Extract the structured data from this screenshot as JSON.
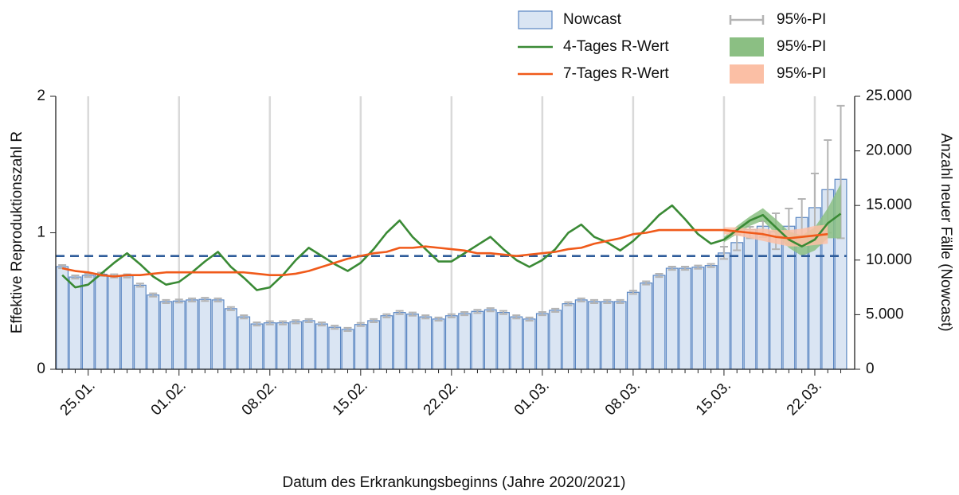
{
  "chart_data": {
    "type": "bar-line",
    "xlabel": "Datum des Erkrankungsbeginns (Jahre 2020/2021)",
    "ylabel": "Effektive Reproduktionszahl R",
    "y2label": "Anzahl neuer Fälle (Nowcast)",
    "categories": [
      null,
      null,
      "25.01.",
      null,
      null,
      null,
      null,
      null,
      null,
      "01.02.",
      null,
      null,
      null,
      null,
      null,
      null,
      "08.02.",
      null,
      null,
      null,
      null,
      null,
      null,
      "15.02.",
      null,
      null,
      null,
      null,
      null,
      null,
      "22.02.",
      null,
      null,
      null,
      null,
      null,
      null,
      "01.03.",
      null,
      null,
      null,
      null,
      null,
      null,
      "08.03.",
      null,
      null,
      null,
      null,
      null,
      null,
      "15.03.",
      null,
      null,
      null,
      null,
      null,
      null,
      "22.03.",
      null,
      null
    ],
    "ylim": [
      0,
      2
    ],
    "yticks": [
      0,
      1,
      2
    ],
    "y2lim": [
      0,
      25000
    ],
    "y2ticks": [
      0,
      {
        "value": 5000,
        "label": "5.000"
      },
      {
        "value": 10000,
        "label": "10.000"
      },
      {
        "value": 15000,
        "label": "15.000"
      },
      {
        "value": 20000,
        "label": "20.000"
      },
      {
        "value": 25000,
        "label": "25.000"
      }
    ],
    "grid": "x",
    "hline": {
      "value": 0.83,
      "color": "#2e5c9a"
    },
    "series": [
      {
        "name": "Nowcast",
        "type": "bar",
        "axis": "y2",
        "color": "#dae5f3",
        "edge": "#5a86c2",
        "values": [
          9400,
          8450,
          8600,
          8700,
          8550,
          8550,
          7700,
          6800,
          6200,
          6250,
          6350,
          6400,
          6350,
          5550,
          4800,
          4150,
          4250,
          4250,
          4350,
          4450,
          4150,
          3850,
          3650,
          4100,
          4450,
          4900,
          5200,
          5050,
          4800,
          4600,
          4900,
          5100,
          5300,
          5450,
          5200,
          4800,
          4600,
          5100,
          5400,
          6000,
          6350,
          6200,
          6200,
          6200,
          7050,
          7900,
          8600,
          9250,
          9250,
          9350,
          9500,
          10650,
          11600,
          12800,
          13100,
          12600,
          13100,
          13900,
          14800,
          16450,
          17400
        ],
        "pi_name": "95%-PI",
        "pi_color": "#b4b4b4",
        "pi_lower": [
          9250,
          8300,
          8450,
          8550,
          8400,
          8400,
          7550,
          6650,
          6050,
          6100,
          6200,
          6250,
          6200,
          5400,
          4650,
          4000,
          4100,
          4100,
          4200,
          4300,
          4000,
          3700,
          3500,
          3950,
          4300,
          4750,
          5050,
          4900,
          4650,
          4450,
          4750,
          4950,
          5150,
          5300,
          5050,
          4650,
          4450,
          4950,
          5250,
          5850,
          6200,
          6050,
          6050,
          6050,
          6900,
          7750,
          8450,
          9100,
          9100,
          9200,
          9350,
          10100,
          10900,
          12000,
          12100,
          11000,
          11500,
          12200,
          12000,
          12500,
          12000
        ],
        "pi_upper": [
          9550,
          8600,
          8750,
          8850,
          8700,
          8700,
          7850,
          6950,
          6350,
          6400,
          6500,
          6550,
          6500,
          5700,
          4950,
          4300,
          4400,
          4400,
          4500,
          4600,
          4300,
          4000,
          3800,
          4250,
          4600,
          5050,
          5350,
          5200,
          4950,
          4750,
          5050,
          5250,
          5450,
          5600,
          5350,
          4950,
          4750,
          5250,
          5550,
          6150,
          6500,
          6350,
          6350,
          6350,
          7200,
          8050,
          8750,
          9400,
          9400,
          9500,
          9650,
          11225,
          12320,
          13050,
          13560,
          14290,
          14720,
          15600,
          17930,
          20990,
          24130
        ]
      },
      {
        "name": "4-Tages R-Wert",
        "type": "line",
        "axis": "y",
        "color": "#3a8a35",
        "values": [
          0.69,
          0.6,
          0.62,
          0.7,
          0.78,
          0.85,
          0.77,
          0.68,
          0.62,
          0.64,
          0.71,
          0.79,
          0.86,
          0.75,
          0.67,
          0.58,
          0.6,
          0.69,
          0.8,
          0.89,
          0.83,
          0.77,
          0.72,
          0.78,
          0.88,
          1.0,
          1.09,
          0.97,
          0.88,
          0.79,
          0.79,
          0.85,
          0.91,
          0.97,
          0.88,
          0.8,
          0.75,
          0.8,
          0.88,
          1.0,
          1.06,
          0.97,
          0.93,
          0.87,
          0.94,
          1.03,
          1.13,
          1.2,
          1.1,
          0.99,
          0.92,
          0.95,
          1.02,
          1.09,
          1.13,
          1.04,
          0.95,
          0.9,
          0.95,
          1.07,
          1.14
        ],
        "band_name": "95%-PI",
        "band_color": "#8bbf83",
        "band_lower": [
          null,
          null,
          null,
          null,
          null,
          null,
          null,
          null,
          null,
          null,
          null,
          null,
          null,
          null,
          null,
          null,
          null,
          null,
          null,
          null,
          null,
          null,
          null,
          null,
          null,
          null,
          null,
          null,
          null,
          null,
          null,
          null,
          null,
          null,
          null,
          null,
          null,
          null,
          null,
          null,
          null,
          null,
          null,
          null,
          null,
          null,
          null,
          null,
          null,
          null,
          null,
          0.93,
          0.99,
          1.05,
          1.09,
          0.99,
          0.89,
          0.83,
          0.87,
          0.96,
          0.96
        ],
        "band_upper": [
          null,
          null,
          null,
          null,
          null,
          null,
          null,
          null,
          null,
          null,
          null,
          null,
          null,
          null,
          null,
          null,
          null,
          null,
          null,
          null,
          null,
          null,
          null,
          null,
          null,
          null,
          null,
          null,
          null,
          null,
          null,
          null,
          null,
          null,
          null,
          null,
          null,
          null,
          null,
          null,
          null,
          null,
          null,
          null,
          null,
          null,
          null,
          null,
          null,
          null,
          null,
          0.97,
          1.05,
          1.12,
          1.18,
          1.1,
          1.01,
          0.98,
          1.04,
          1.18,
          1.36
        ]
      },
      {
        "name": "7-Tages R-Wert",
        "type": "line",
        "axis": "y",
        "color": "#f05a1a",
        "values": [
          0.74,
          0.72,
          0.71,
          0.69,
          0.68,
          0.69,
          0.69,
          0.7,
          0.71,
          0.71,
          0.71,
          0.71,
          0.71,
          0.71,
          0.71,
          0.7,
          0.69,
          0.69,
          0.7,
          0.72,
          0.75,
          0.78,
          0.81,
          0.83,
          0.85,
          0.86,
          0.89,
          0.89,
          0.9,
          0.89,
          0.88,
          0.87,
          0.85,
          0.85,
          0.84,
          0.83,
          0.84,
          0.85,
          0.86,
          0.88,
          0.89,
          0.92,
          0.94,
          0.96,
          0.99,
          1.0,
          1.02,
          1.02,
          1.02,
          1.02,
          1.02,
          1.02,
          1.01,
          1.0,
          0.99,
          0.97,
          0.96,
          0.97,
          0.98,
          0.99,
          null
        ],
        "band_name": "95%-PI",
        "band_color": "#fbbfa5",
        "band_lower": [
          null,
          null,
          null,
          null,
          null,
          null,
          null,
          null,
          null,
          null,
          null,
          null,
          null,
          null,
          null,
          null,
          null,
          null,
          null,
          null,
          null,
          null,
          null,
          null,
          null,
          null,
          null,
          null,
          null,
          null,
          null,
          null,
          null,
          null,
          null,
          null,
          null,
          null,
          null,
          null,
          null,
          null,
          null,
          null,
          null,
          null,
          null,
          null,
          null,
          null,
          null,
          0.99,
          0.98,
          0.96,
          0.94,
          0.92,
          0.9,
          0.9,
          0.91,
          0.92,
          null
        ],
        "band_upper": [
          null,
          null,
          null,
          null,
          null,
          null,
          null,
          null,
          null,
          null,
          null,
          null,
          null,
          null,
          null,
          null,
          null,
          null,
          null,
          null,
          null,
          null,
          null,
          null,
          null,
          null,
          null,
          null,
          null,
          null,
          null,
          null,
          null,
          null,
          null,
          null,
          null,
          null,
          null,
          null,
          null,
          null,
          null,
          null,
          null,
          null,
          null,
          null,
          null,
          null,
          null,
          1.04,
          1.04,
          1.03,
          1.03,
          1.02,
          1.02,
          1.03,
          1.05,
          1.06,
          null
        ]
      }
    ]
  }
}
